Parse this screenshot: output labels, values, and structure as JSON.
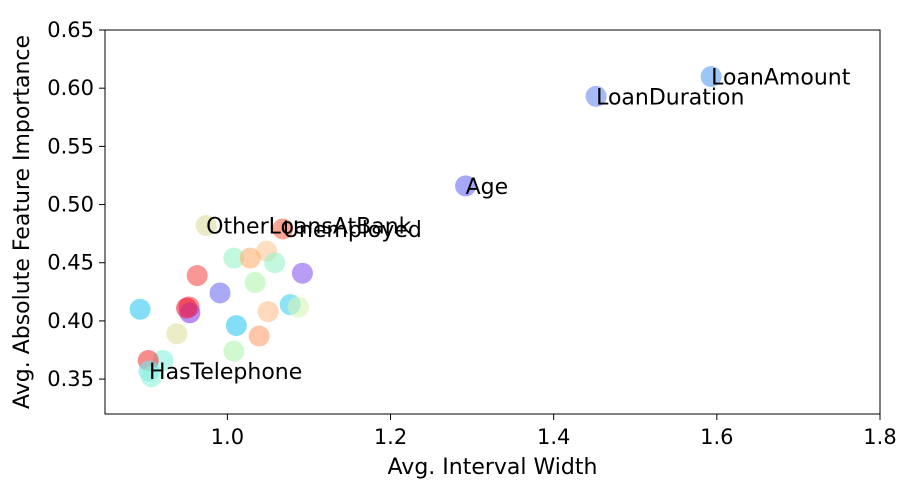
{
  "chart_data": {
    "type": "scatter",
    "xlabel": "Avg. Interval Width",
    "ylabel": "Avg. Absolute Feature Importance",
    "xlim": [
      0.85,
      1.8
    ],
    "ylim": [
      0.32,
      0.65
    ],
    "xticks": [
      "1.0",
      "1.2",
      "1.4",
      "1.6",
      "1.8"
    ],
    "xtick_values": [
      1.0,
      1.2,
      1.4,
      1.6,
      1.8
    ],
    "yticks": [
      "0.35",
      "0.40",
      "0.45",
      "0.50",
      "0.55",
      "0.60",
      "0.65"
    ],
    "ytick_values": [
      0.35,
      0.4,
      0.45,
      0.5,
      0.55,
      0.6,
      0.65
    ],
    "grid": false,
    "points": [
      {
        "x": 1.593,
        "y": 0.61,
        "color": "#5aa0f0"
      },
      {
        "x": 1.452,
        "y": 0.593,
        "color": "#6b8cf0"
      },
      {
        "x": 1.292,
        "y": 0.516,
        "color": "#6a6ef2"
      },
      {
        "x": 0.974,
        "y": 0.482,
        "color": "#dcdc9c"
      },
      {
        "x": 1.068,
        "y": 0.479,
        "color": "#f86a4a"
      },
      {
        "x": 1.048,
        "y": 0.46,
        "color": "#ffc89a"
      },
      {
        "x": 1.008,
        "y": 0.454,
        "color": "#9af5c8"
      },
      {
        "x": 1.028,
        "y": 0.454,
        "color": "#ffb070"
      },
      {
        "x": 1.058,
        "y": 0.45,
        "color": "#9af5c8"
      },
      {
        "x": 1.092,
        "y": 0.441,
        "color": "#8a5af0"
      },
      {
        "x": 0.963,
        "y": 0.439,
        "color": "#f55050"
      },
      {
        "x": 1.034,
        "y": 0.433,
        "color": "#b0f5b0"
      },
      {
        "x": 0.991,
        "y": 0.424,
        "color": "#7070f0"
      },
      {
        "x": 1.077,
        "y": 0.414,
        "color": "#40d0f0"
      },
      {
        "x": 1.087,
        "y": 0.412,
        "color": "#d5f5b5"
      },
      {
        "x": 0.893,
        "y": 0.41,
        "color": "#30c8f0"
      },
      {
        "x": 0.953,
        "y": 0.412,
        "color": "#f04040"
      },
      {
        "x": 1.05,
        "y": 0.408,
        "color": "#ffc090"
      },
      {
        "x": 0.954,
        "y": 0.407,
        "color": "#9040f0"
      },
      {
        "x": 0.95,
        "y": 0.411,
        "color": "#f02040"
      },
      {
        "x": 1.011,
        "y": 0.396,
        "color": "#30c8f0"
      },
      {
        "x": 0.938,
        "y": 0.389,
        "color": "#e0e0a0"
      },
      {
        "x": 1.039,
        "y": 0.387,
        "color": "#ffa070"
      },
      {
        "x": 1.008,
        "y": 0.374,
        "color": "#b0f5b0"
      },
      {
        "x": 0.921,
        "y": 0.366,
        "color": "#8af0e0"
      },
      {
        "x": 0.903,
        "y": 0.366,
        "color": "#f04040"
      },
      {
        "x": 0.904,
        "y": 0.357,
        "color": "#70e8f0"
      },
      {
        "x": 0.907,
        "y": 0.352,
        "color": "#90f5d8"
      }
    ],
    "annotations": [
      {
        "text": "LoanAmount",
        "x": 1.593,
        "y": 0.61
      },
      {
        "text": "LoanDuration",
        "x": 1.452,
        "y": 0.593
      },
      {
        "text": "Age",
        "x": 1.292,
        "y": 0.516
      },
      {
        "text": "OtherLoansAtBank",
        "x": 0.974,
        "y": 0.482
      },
      {
        "text": "Unemployed",
        "x": 1.068,
        "y": 0.479
      },
      {
        "text": "HasTelephone",
        "x": 0.904,
        "y": 0.357
      }
    ]
  }
}
